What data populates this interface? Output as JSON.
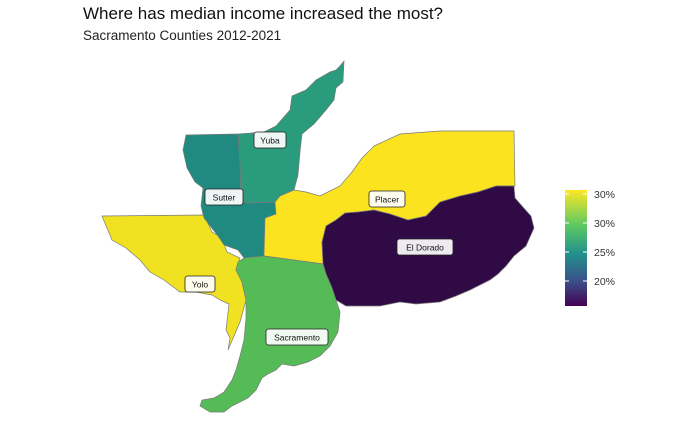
{
  "title": "Where has median income increased the most?",
  "subtitle": "Sacramento Counties 2012-2021",
  "counties": [
    {
      "name": "Yuba",
      "color": "#2a9b7c"
    },
    {
      "name": "Sutter",
      "color": "#218a80"
    },
    {
      "name": "Yolo",
      "color": "#f0e221"
    },
    {
      "name": "Placer",
      "color": "#fbe41f"
    },
    {
      "name": "El Dorado",
      "color": "#2f0a45"
    },
    {
      "name": "Sacramento",
      "color": "#55bb56"
    }
  ],
  "legend": {
    "ticks": [
      "30%",
      "30%",
      "25%",
      "20%"
    ],
    "gradient": [
      "#fde725",
      "#5ec962",
      "#21918c",
      "#3b528b",
      "#440154"
    ]
  }
}
